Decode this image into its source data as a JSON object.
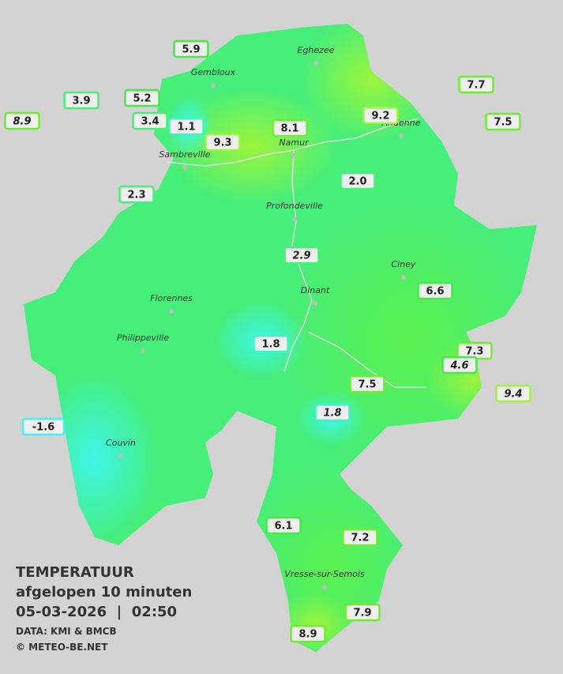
{
  "title": {
    "line1": "TEMPERATUUR",
    "line2": "afgelopen 10 minuten",
    "line3": "05-03-2026  |  02:50",
    "source": "DATA: KMI & BMCB",
    "credit": "© METEO-BE.NET"
  },
  "cities": [
    "Eghezee",
    "Gembloux",
    "Andenne",
    "Namur",
    "Sambreville",
    "Profondeville",
    "Ciney",
    "Dinant",
    "Florennes",
    "Philippeville",
    "Couvin",
    "Vresse-sur-Semois"
  ],
  "stations": [
    "5.9",
    "3.9",
    "5.2",
    "8.9",
    "3.4",
    "1.1",
    "9.3",
    "8.1",
    "9.2",
    "7.7",
    "7.5",
    "2.3",
    "2.0",
    "2.9",
    "6.6",
    "1.8",
    "7.3",
    "4.6",
    "7.5",
    "9.4",
    "1.8",
    "-1.6",
    "6.1",
    "7.2",
    "7.9",
    "8.9"
  ]
}
